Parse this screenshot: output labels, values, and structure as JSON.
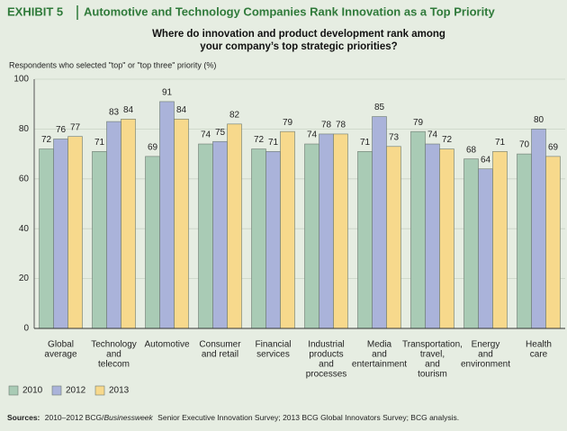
{
  "chart_data": {
    "type": "bar",
    "exhibit": "EXHIBIT 5",
    "title": "Automotive and Technology Companies Rank Innovation as a Top Priority",
    "subtitle": [
      "Where do innovation and product development rank among",
      "your company’s top strategic priorities?"
    ],
    "y_label": "Respondents who selected \"top\" or \"top three\" priority (%)",
    "categories": [
      [
        "Global",
        "average"
      ],
      [
        "Technology",
        "and",
        "telecom"
      ],
      [
        "Automotive"
      ],
      [
        "Consumer",
        "and retail"
      ],
      [
        "Financial",
        "services"
      ],
      [
        "Industrial",
        "products",
        "and",
        "processes"
      ],
      [
        "Media",
        "and",
        "entertainment"
      ],
      [
        "Transportation,",
        "travel,",
        "and",
        "tourism"
      ],
      [
        "Energy",
        "and",
        "environment"
      ],
      [
        "Health",
        "care"
      ]
    ],
    "series": [
      {
        "name": "2010",
        "color": "#a9cbb5",
        "values": [
          72,
          71,
          69,
          74,
          72,
          74,
          71,
          79,
          68,
          70
        ]
      },
      {
        "name": "2012",
        "color": "#aab3da",
        "values": [
          76,
          83,
          91,
          75,
          71,
          78,
          85,
          74,
          64,
          80
        ]
      },
      {
        "name": "2013",
        "color": "#f7d98c",
        "values": [
          77,
          84,
          84,
          82,
          79,
          78,
          73,
          72,
          71,
          69
        ]
      }
    ],
    "ylim": [
      0,
      100
    ],
    "yticks": [
      0,
      20,
      40,
      60,
      80,
      100
    ],
    "grid": true,
    "source": {
      "label": "Sources:",
      "parts": [
        "2010–2012 BCG/",
        "Businessweek",
        "Senior Executive Innovation Survey; 2013 BCG Global Innovators Survey; BCG analysis."
      ]
    }
  }
}
